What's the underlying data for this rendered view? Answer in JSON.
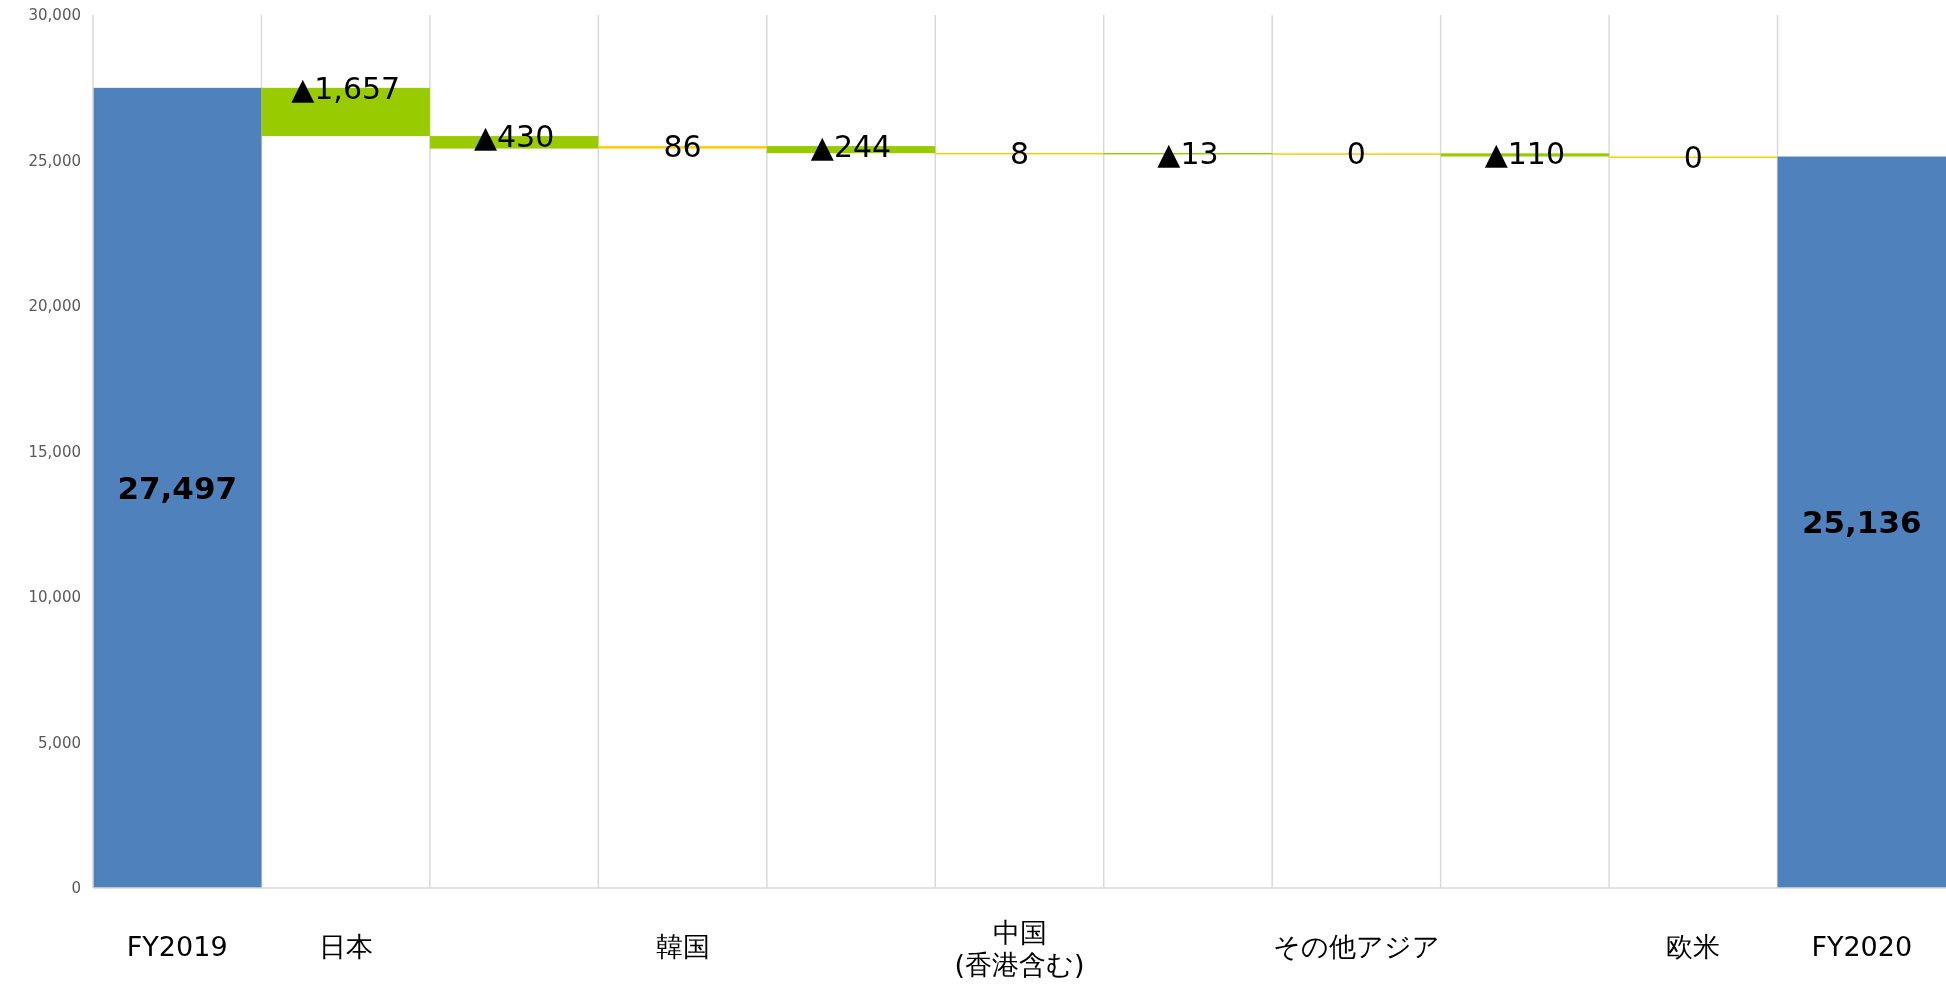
{
  "chart_data": {
    "type": "bar",
    "categories": [
      "FY2019",
      "日本",
      null,
      "韓国",
      null,
      "中国\n(香港含む)",
      null,
      "その他アジア",
      null,
      "欧米",
      "FY2020"
    ],
    "base": [
      0,
      27497,
      25840,
      25410,
      25496,
      25252,
      25260,
      25247,
      25247,
      25137,
      0
    ],
    "values": [
      27497,
      -1657,
      -430,
      86,
      -244,
      8,
      -13,
      0,
      -110,
      0,
      25136
    ],
    "colors": [
      "#4f81bd",
      "#99cc00",
      "#99cc00",
      "#ffcc00",
      "#99cc00",
      "#ffcc00",
      "#99cc00",
      "#ffcc00",
      "#99cc00",
      "#ffcc00",
      "#4f81bd"
    ],
    "value_labels": [
      "27,497",
      "▲1,657",
      "▲430",
      "86",
      "▲244",
      "8",
      "▲13",
      "0",
      "▲110",
      "0",
      "25,136"
    ],
    "ylim": [
      0,
      30000
    ],
    "yticks": [
      {
        "value": 0,
        "label": "0"
      },
      {
        "value": 5000,
        "label": "5,000"
      },
      {
        "value": 10000,
        "label": "10,000"
      },
      {
        "value": 15000,
        "label": "15,000"
      },
      {
        "value": 20000,
        "label": "20,000"
      },
      {
        "value": 25000,
        "label": "25,000"
      },
      {
        "value": 30000,
        "label": "30,000"
      }
    ],
    "grid": "x"
  }
}
